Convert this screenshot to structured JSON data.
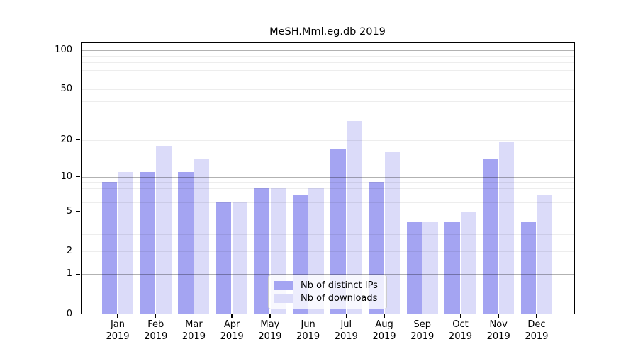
{
  "chart_data": {
    "type": "bar",
    "title": "MeSH.Mml.eg.db 2019",
    "categories": [
      "Jan",
      "Feb",
      "Mar",
      "Apr",
      "May",
      "Jun",
      "Jul",
      "Aug",
      "Sep",
      "Oct",
      "Nov",
      "Dec"
    ],
    "category_year": "2019",
    "series": [
      {
        "name": "Nb of distinct IPs",
        "color": "#a4a4f2",
        "values": [
          9,
          11,
          11,
          6,
          8,
          7,
          17,
          9,
          4,
          4,
          14,
          4
        ]
      },
      {
        "name": "Nb of downloads",
        "color": "#dbdbf9",
        "values": [
          11,
          18,
          14,
          6,
          8,
          8,
          28,
          16,
          4,
          5,
          19,
          7
        ]
      }
    ],
    "yscale": "log1p",
    "ylim": [
      0,
      115
    ],
    "yticks": [
      0,
      1,
      2,
      5,
      10,
      20,
      50,
      100
    ],
    "grid_major_at": [
      1,
      10,
      100
    ],
    "grid_minor_at": [
      2,
      3,
      4,
      5,
      6,
      7,
      8,
      9,
      20,
      30,
      40,
      50,
      60,
      70,
      80,
      90
    ],
    "grid": "on",
    "legend_position": "lower center",
    "xlabel": "",
    "ylabel": ""
  },
  "colors": {
    "background": "#ffffff",
    "axis": "#000000",
    "grid_major": "#b2b2b2",
    "grid_minor": "#ededed",
    "legend_border": "#cccccc"
  }
}
